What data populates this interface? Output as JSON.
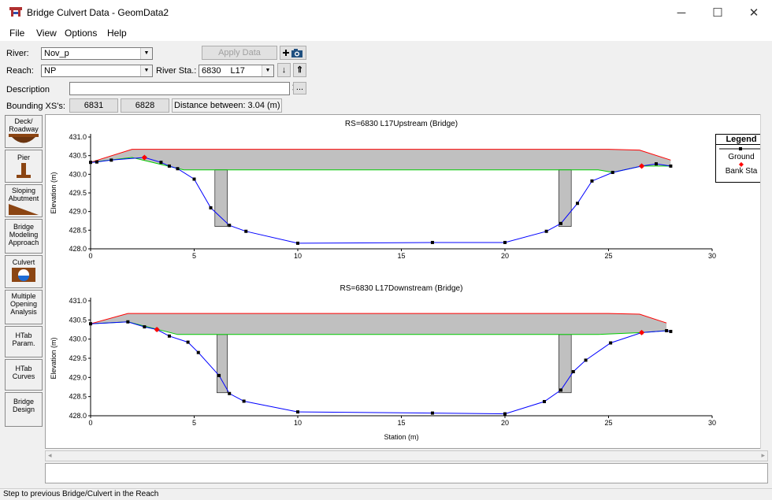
{
  "window": {
    "title": "Bridge Culvert Data - GeomData2",
    "minimize": "─",
    "maximize": "☐",
    "close": "✕"
  },
  "menu": [
    "File",
    "View",
    "Options",
    "Help"
  ],
  "river": {
    "label": "River:",
    "value": "Nov_p"
  },
  "reach": {
    "label": "Reach:",
    "value": "NP"
  },
  "river_sta": {
    "label": "River Sta.:",
    "value": "6830",
    "value2": "L17"
  },
  "apply_button": "Apply Data",
  "description": {
    "label": "Description",
    "value": "",
    "ellipsis": "..."
  },
  "bounding": {
    "label": "Bounding XS's:",
    "upstream": "6831",
    "downstream": "6828",
    "distance": "Distance between: 3.04 (m)"
  },
  "sidebar": [
    {
      "label": "Deck/ Roadway"
    },
    {
      "label": "Pier"
    },
    {
      "label": "Sloping Abutment"
    },
    {
      "label": "Bridge Modeling Approach"
    },
    {
      "label": "Culvert"
    },
    {
      "label": "Multiple Opening Analysis"
    },
    {
      "label": "HTab Param."
    },
    {
      "label": "HTab Curves"
    },
    {
      "label": "Bridge Design"
    }
  ],
  "legend": {
    "title": "Legend",
    "ground": "Ground",
    "bank": "Bank Sta"
  },
  "colors": {
    "deck": "#c0c0c0",
    "deck_top": "#ff0000",
    "deck_bottom": "#00cc00",
    "ground": "#0000ff",
    "ground_marker": "#000000",
    "bank": "#ff0000"
  },
  "chart_data": [
    {
      "type": "line",
      "title": "RS=6830     L17Upstream  (Bridge)",
      "ylabel": "Elevation (m)",
      "xlabel": "",
      "xlim": [
        0,
        30
      ],
      "ylim": [
        428.0,
        431.0
      ],
      "xticks": [
        0,
        5,
        10,
        15,
        20,
        25,
        30
      ],
      "yticks": [
        428.0,
        428.5,
        429.0,
        429.5,
        430.0,
        430.5,
        431.0
      ],
      "ground": [
        [
          0,
          430.32
        ],
        [
          0.3,
          430.33
        ],
        [
          1.0,
          430.38
        ],
        [
          2.6,
          430.45
        ],
        [
          3.4,
          430.32
        ],
        [
          3.8,
          430.22
        ],
        [
          4.2,
          430.15
        ],
        [
          5.0,
          429.87
        ],
        [
          5.8,
          429.1
        ],
        [
          6.7,
          428.63
        ],
        [
          7.5,
          428.47
        ],
        [
          10.0,
          428.15
        ],
        [
          16.5,
          428.17
        ],
        [
          20.0,
          428.17
        ],
        [
          22.0,
          428.47
        ],
        [
          22.7,
          428.68
        ],
        [
          23.5,
          429.22
        ],
        [
          24.2,
          429.82
        ],
        [
          25.2,
          430.05
        ],
        [
          26.6,
          430.22
        ],
        [
          27.3,
          430.28
        ],
        [
          28.0,
          430.22
        ]
      ],
      "bank_stations": [
        [
          2.6,
          430.45
        ],
        [
          26.6,
          430.22
        ]
      ],
      "deck_high": [
        [
          0,
          430.32
        ],
        [
          2.0,
          430.67
        ],
        [
          25.0,
          430.67
        ],
        [
          26.5,
          430.65
        ],
        [
          28.0,
          430.38
        ]
      ],
      "deck_low": [
        [
          0,
          430.32
        ],
        [
          2.0,
          430.45
        ],
        [
          4.5,
          430.12
        ],
        [
          24.5,
          430.12
        ],
        [
          25.2,
          430.05
        ],
        [
          26.6,
          430.22
        ],
        [
          28.0,
          430.22
        ]
      ],
      "piers": [
        [
          6.0,
          6.6
        ],
        [
          22.6,
          23.2
        ]
      ]
    },
    {
      "type": "line",
      "title": "RS=6830     L17Downstream  (Bridge)",
      "ylabel": "Elevation (m)",
      "xlabel": "Station (m)",
      "xlim": [
        0,
        30
      ],
      "ylim": [
        428.0,
        431.0
      ],
      "xticks": [
        0,
        5,
        10,
        15,
        20,
        25,
        30
      ],
      "yticks": [
        428.0,
        428.5,
        429.0,
        429.5,
        430.0,
        430.5,
        431.0
      ],
      "ground": [
        [
          0,
          430.4
        ],
        [
          1.8,
          430.45
        ],
        [
          2.6,
          430.32
        ],
        [
          3.2,
          430.25
        ],
        [
          3.8,
          430.08
        ],
        [
          4.7,
          429.92
        ],
        [
          5.2,
          429.65
        ],
        [
          6.2,
          429.05
        ],
        [
          6.7,
          428.58
        ],
        [
          7.4,
          428.38
        ],
        [
          10.0,
          428.1
        ],
        [
          16.5,
          428.07
        ],
        [
          20.0,
          428.05
        ],
        [
          21.9,
          428.37
        ],
        [
          22.7,
          428.67
        ],
        [
          23.3,
          429.15
        ],
        [
          23.9,
          429.45
        ],
        [
          25.1,
          429.9
        ],
        [
          26.6,
          430.17
        ],
        [
          27.8,
          430.22
        ],
        [
          28.0,
          430.2
        ]
      ],
      "bank_stations": [
        [
          3.2,
          430.25
        ],
        [
          26.6,
          430.17
        ]
      ],
      "deck_high": [
        [
          0,
          430.4
        ],
        [
          1.8,
          430.67
        ],
        [
          25.0,
          430.67
        ],
        [
          26.5,
          430.65
        ],
        [
          27.8,
          430.42
        ]
      ],
      "deck_low": [
        [
          0,
          430.4
        ],
        [
          1.8,
          430.45
        ],
        [
          4.2,
          430.12
        ],
        [
          24.5,
          430.12
        ],
        [
          26.6,
          430.17
        ],
        [
          27.8,
          430.22
        ]
      ],
      "piers": [
        [
          6.1,
          6.6
        ],
        [
          22.6,
          23.2
        ]
      ]
    }
  ]
}
